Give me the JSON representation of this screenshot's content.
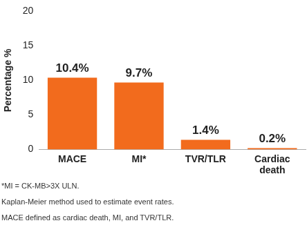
{
  "chart_data": {
    "type": "bar",
    "ylabel": "Percentage %",
    "categories": [
      "MACE",
      "MI*",
      "TVR/TLR",
      "Cardiac death"
    ],
    "values": [
      10.4,
      9.7,
      1.4,
      0.2
    ],
    "value_labels": [
      "10.4%",
      "9.7%",
      "1.4%",
      "0.2%"
    ],
    "color": "#f26b1d",
    "ylim": [
      0,
      20
    ],
    "yticks": [
      0,
      5,
      10,
      15,
      20
    ],
    "grid": false,
    "data_labels": true,
    "annotations": [
      "*MI = CK-MB>3X ULN.",
      "Kaplan-Meier method used to estimate event rates.",
      "MACE defined as cardiac death, MI, and TVR/TLR."
    ]
  }
}
